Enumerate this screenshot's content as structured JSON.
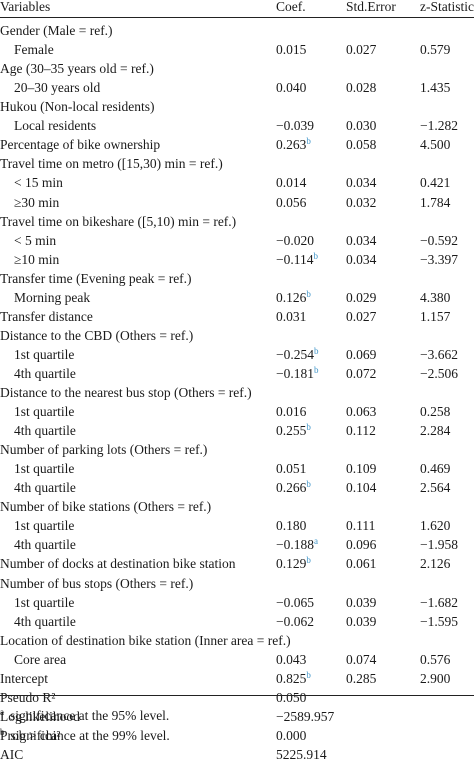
{
  "header": {
    "variables": "Variables",
    "coef": "Coef.",
    "stderr": "Std.Error",
    "zstat": "z-Statistic"
  },
  "rows": [
    {
      "label": "Gender (Male = ref.)",
      "indent": false
    },
    {
      "label": "Female",
      "indent": true,
      "coef": "0.015",
      "se": "0.027",
      "z": "0.579"
    },
    {
      "label": "Age (30–35 years old = ref.)",
      "indent": false
    },
    {
      "label": "20–30 years old",
      "indent": true,
      "coef": "0.040",
      "se": "0.028",
      "z": "1.435"
    },
    {
      "label": "Hukou (Non-local residents)",
      "indent": false
    },
    {
      "label": "Local residents",
      "indent": true,
      "coef": "−0.039",
      "se": "0.030",
      "z": "−1.282"
    },
    {
      "label": "Percentage of bike ownership",
      "indent": false,
      "coef": "0.263",
      "sig": "b",
      "se": "0.058",
      "z": "4.500"
    },
    {
      "label": "Travel time on metro ([15,30) min = ref.)",
      "indent": false
    },
    {
      "label": "< 15 min",
      "indent": true,
      "coef": "0.014",
      "se": "0.034",
      "z": "0.421"
    },
    {
      "label": "≥30 min",
      "indent": true,
      "coef": "0.056",
      "se": "0.032",
      "z": "1.784"
    },
    {
      "label": "Travel time on bikeshare ([5,10) min = ref.)",
      "indent": false
    },
    {
      "label": "< 5 min",
      "indent": true,
      "coef": "−0.020",
      "se": "0.034",
      "z": "−0.592"
    },
    {
      "label": "≥10 min",
      "indent": true,
      "coef": "−0.114",
      "sig": "b",
      "se": "0.034",
      "z": "−3.397"
    },
    {
      "label": "Transfer time (Evening peak = ref.)",
      "indent": false
    },
    {
      "label": "Morning peak",
      "indent": true,
      "coef": "0.126",
      "sig": "b",
      "se": "0.029",
      "z": "4.380"
    },
    {
      "label": "Transfer distance",
      "indent": false,
      "coef": "0.031",
      "se": "0.027",
      "z": "1.157"
    },
    {
      "label": "Distance to the CBD (Others = ref.)",
      "indent": false
    },
    {
      "label": "1st quartile",
      "indent": true,
      "coef": "−0.254",
      "sig": "b",
      "se": "0.069",
      "z": "−3.662"
    },
    {
      "label": "4th quartile",
      "indent": true,
      "coef": "−0.181",
      "sig": "b",
      "se": "0.072",
      "z": "−2.506"
    },
    {
      "label": "Distance to the nearest bus stop (Others = ref.)",
      "indent": false
    },
    {
      "label": "1st quartile",
      "indent": true,
      "coef": "0.016",
      "se": "0.063",
      "z": "0.258"
    },
    {
      "label": "4th quartile",
      "indent": true,
      "coef": "0.255",
      "sig": "b",
      "se": "0.112",
      "z": "2.284"
    },
    {
      "label": "Number of parking lots (Others = ref.)",
      "indent": false
    },
    {
      "label": "1st quartile",
      "indent": true,
      "coef": "0.051",
      "se": "0.109",
      "z": "0.469"
    },
    {
      "label": "4th quartile",
      "indent": true,
      "coef": "0.266",
      "sig": "b",
      "se": "0.104",
      "z": "2.564"
    },
    {
      "label": "Number of bike stations (Others = ref.)",
      "indent": false
    },
    {
      "label": "1st quartile",
      "indent": true,
      "coef": "0.180",
      "se": "0.111",
      "z": "1.620"
    },
    {
      "label": "4th quartile",
      "indent": true,
      "coef": "−0.188",
      "sig": "a",
      "se": "0.096",
      "z": "−1.958"
    },
    {
      "label": "Number of docks at destination bike station",
      "indent": false,
      "coef": "0.129",
      "sig": "b",
      "se": "0.061",
      "z": "2.126"
    },
    {
      "label": "Number of bus stops (Others = ref.)",
      "indent": false
    },
    {
      "label": "1st quartile",
      "indent": true,
      "coef": "−0.065",
      "se": "0.039",
      "z": "−1.682"
    },
    {
      "label": "4th quartile",
      "indent": true,
      "coef": "−0.062",
      "se": "0.039",
      "z": "−1.595"
    },
    {
      "label": "Location of destination bike station (Inner area = ref.)",
      "indent": false
    },
    {
      "label": "Core area",
      "indent": true,
      "coef": "0.043",
      "se": "0.074",
      "z": "0.576"
    },
    {
      "label": "Intercept",
      "indent": false,
      "coef": "0.825",
      "sig": "b",
      "se": "0.285",
      "z": "2.900"
    },
    {
      "label": "Pseudo R²",
      "indent": false,
      "coef": "0.050"
    },
    {
      "label": "Log likelihood",
      "indent": false,
      "coef": "−2589.957"
    },
    {
      "label": "Prob > chi²",
      "indent": false,
      "coef": "0.000"
    },
    {
      "label": "AIC",
      "indent": false,
      "coef": "5225.914"
    }
  ],
  "footnotes": [
    {
      "mark": "a",
      "text": "significance at the 95% level."
    },
    {
      "mark": "b",
      "text": "significance at the 99% level."
    }
  ],
  "colors": {
    "significance_marker": "#3f95c9",
    "text": "#1a1a1a"
  }
}
